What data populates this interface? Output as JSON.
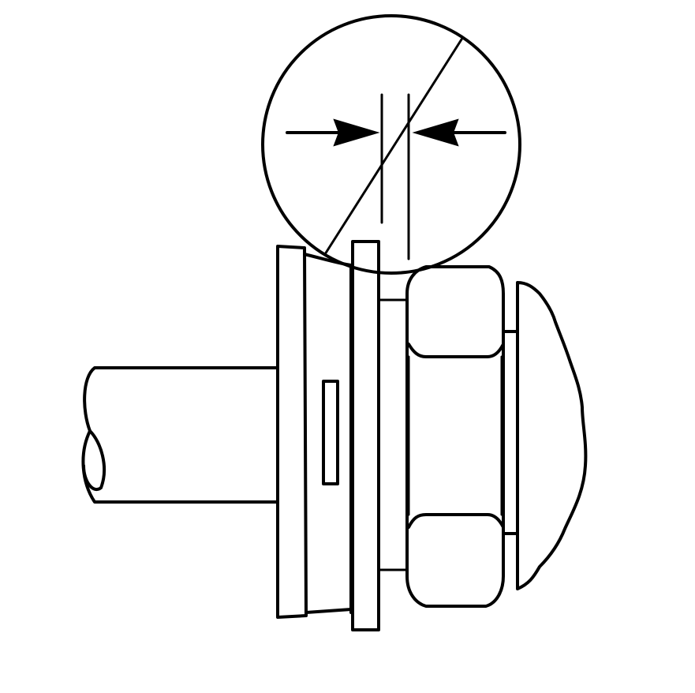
{
  "diagram": {
    "ink_color": "#000000",
    "paper_color": "#ffffff",
    "parts": [
      "shaft",
      "flange-plate",
      "hub",
      "washer",
      "hex-nut",
      "mounting-surface",
      "detail-circle",
      "gap-dimension-arrows"
    ]
  }
}
